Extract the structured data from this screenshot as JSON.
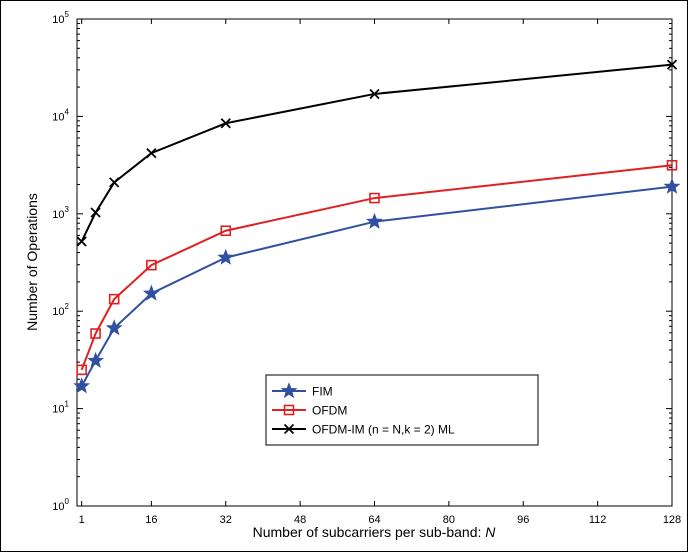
{
  "chart_data": {
    "type": "line",
    "xlabel": "Number of subcarriers per sub-band: ",
    "xlabel_var": "N",
    "ylabel": "Number of Operations",
    "x_scale": "linear",
    "y_scale": "log",
    "xlim": [
      0,
      128
    ],
    "ylim": [
      1,
      100000
    ],
    "x_ticks": [
      1,
      16,
      32,
      48,
      64,
      80,
      96,
      112,
      128
    ],
    "y_ticks": [
      {
        "value": 1,
        "base": "10",
        "exp": "0"
      },
      {
        "value": 10,
        "base": "10",
        "exp": "1"
      },
      {
        "value": 100,
        "base": "10",
        "exp": "2"
      },
      {
        "value": 1000,
        "base": "10",
        "exp": "3"
      },
      {
        "value": 10000,
        "base": "10",
        "exp": "4"
      },
      {
        "value": 100000,
        "base": "10",
        "exp": "5"
      }
    ],
    "grid": false,
    "legend_position": "center-bottom",
    "series": [
      {
        "name": "FIM",
        "color": "#3050a0",
        "marker": "star",
        "x": [
          1,
          4,
          8,
          16,
          32,
          64,
          128
        ],
        "values": [
          17,
          31,
          67,
          152,
          355,
          830,
          1900
        ]
      },
      {
        "name": "OFDM",
        "color": "#e02020",
        "marker": "square",
        "x": [
          1,
          4,
          8,
          16,
          32,
          64,
          128
        ],
        "values": [
          25,
          59,
          133,
          297,
          670,
          1450,
          3150
        ]
      },
      {
        "name": "OFDM-IM (n = N,k = 2) ML",
        "color": "#000000",
        "marker": "x",
        "x": [
          1,
          4,
          8,
          16,
          32,
          64,
          128
        ],
        "values": [
          520,
          1030,
          2100,
          4200,
          8500,
          17000,
          34000
        ]
      }
    ]
  }
}
